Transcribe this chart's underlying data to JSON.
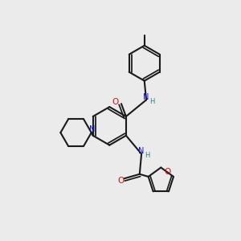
{
  "bg_color": "#ebebeb",
  "bond_color": "#1a1a1a",
  "N_color": "#1010cc",
  "O_color": "#cc1010",
  "NH_color": "#2a8080",
  "lw": 1.5,
  "xlim": [
    0,
    6.0
  ],
  "ylim": [
    0,
    6.5
  ],
  "figsize": [
    3.0,
    3.0
  ],
  "dpi": 100
}
